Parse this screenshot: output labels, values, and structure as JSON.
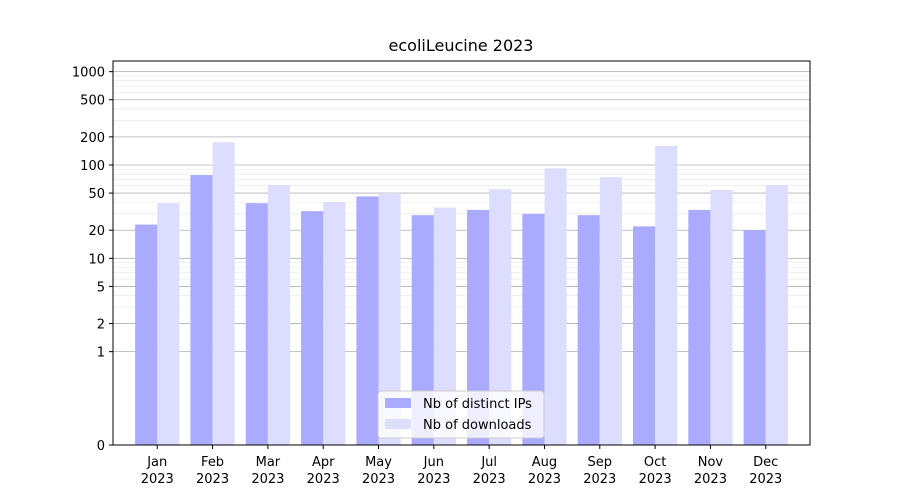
{
  "chart_data": {
    "type": "bar",
    "title": "ecoliLeucine 2023",
    "xlabel": "",
    "ylabel": "",
    "categories": [
      [
        "Jan",
        "2023"
      ],
      [
        "Feb",
        "2023"
      ],
      [
        "Mar",
        "2023"
      ],
      [
        "Apr",
        "2023"
      ],
      [
        "May",
        "2023"
      ],
      [
        "Jun",
        "2023"
      ],
      [
        "Jul",
        "2023"
      ],
      [
        "Aug",
        "2023"
      ],
      [
        "Sep",
        "2023"
      ],
      [
        "Oct",
        "2023"
      ],
      [
        "Nov",
        "2023"
      ],
      [
        "Dec",
        "2023"
      ]
    ],
    "series": [
      {
        "name": "Nb of distinct IPs",
        "color": "#aaaaff",
        "values": [
          23,
          78,
          39,
          32,
          46,
          29,
          33,
          30,
          29,
          22,
          33,
          20
        ]
      },
      {
        "name": "Nb of downloads",
        "color": "#ddddff",
        "values": [
          39,
          175,
          61,
          40,
          50,
          35,
          55,
          92,
          74,
          160,
          54,
          61
        ]
      }
    ],
    "yscale": "symlog",
    "ylim": [
      0,
      1300
    ],
    "yticks": [
      0,
      1,
      2,
      5,
      10,
      20,
      50,
      100,
      200,
      500,
      1000
    ],
    "ytick_labels": [
      "0",
      "1",
      "2",
      "5",
      "10",
      "20",
      "50",
      "100",
      "200",
      "500",
      "1000"
    ],
    "grid": "horizontal",
    "legend_position": "bottom-center"
  }
}
